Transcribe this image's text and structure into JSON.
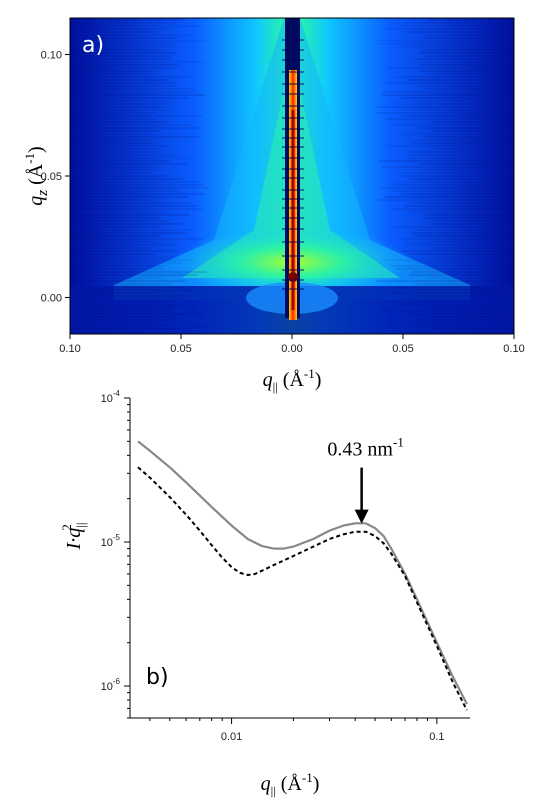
{
  "chart_data": [
    {
      "type": "heatmap",
      "panel_label": "a)",
      "xlabel": "q",
      "xlabel_sub": "||",
      "xlabel_unit": " (Å",
      "xlabel_unit_sup": "-1",
      "xlabel_unit_close": ")",
      "ylabel": "q",
      "ylabel_sub": "z",
      "ylabel_unit": " (Å",
      "ylabel_unit_sup": "-1",
      "ylabel_unit_close": ")",
      "xlim": [
        -0.1,
        0.1
      ],
      "ylim": [
        -0.015,
        0.115
      ],
      "x_ticks": [
        {
          "value": -0.1,
          "label": "0.10"
        },
        {
          "value": -0.05,
          "label": "0.05"
        },
        {
          "value": 0.0,
          "label": "0.00"
        },
        {
          "value": 0.05,
          "label": "0.05"
        },
        {
          "value": 0.1,
          "label": "0.10"
        }
      ],
      "y_ticks": [
        {
          "value": 0.0,
          "label": "0.00"
        },
        {
          "value": 0.05,
          "label": "0.05"
        },
        {
          "value": 0.1,
          "label": "0.10"
        }
      ],
      "colormap": [
        "#00008b",
        "#0050ff",
        "#00c8ff",
        "#40ff90",
        "#c8ff00",
        "#ffd000",
        "#ff3000",
        "#800000"
      ]
    },
    {
      "type": "line",
      "panel_label": "b)",
      "xscale": "log",
      "yscale": "log",
      "xlabel": "q",
      "xlabel_sub": "||",
      "xlabel_unit": " (Å",
      "xlabel_unit_sup": "-1",
      "xlabel_unit_close": ")",
      "ylabel": "I·q",
      "ylabel_sub": "||",
      "ylabel_sup": "2",
      "xlim": [
        0.0032,
        0.145
      ],
      "ylim": [
        6e-07,
        0.0001
      ],
      "x_ticks": [
        {
          "value": 0.01,
          "label": "0.01"
        },
        {
          "value": 0.1,
          "label": "0.1"
        }
      ],
      "y_ticks": [
        {
          "value": 1e-06,
          "base": "10",
          "exp": "-6"
        },
        {
          "value": 1e-05,
          "base": "10",
          "exp": "-5"
        },
        {
          "value": 0.0001,
          "base": "10",
          "exp": "-4"
        }
      ],
      "annotation": {
        "text": "0.43 nm",
        "sup": "-1",
        "x": 0.043,
        "y": 1.3e-05
      },
      "series": [
        {
          "style": "solid",
          "color": "#888888",
          "x": [
            0.0035,
            0.004,
            0.005,
            0.006,
            0.007,
            0.008,
            0.01,
            0.012,
            0.014,
            0.016,
            0.018,
            0.02,
            0.025,
            0.03,
            0.035,
            0.04,
            0.045,
            0.05,
            0.055,
            0.06,
            0.07,
            0.08,
            0.1,
            0.12,
            0.14
          ],
          "y": [
            5e-05,
            4.3e-05,
            3.3e-05,
            2.6e-05,
            2.1e-05,
            1.75e-05,
            1.3e-05,
            1.05e-05,
            9.4e-06,
            9e-06,
            9e-06,
            9.3e-06,
            1.05e-05,
            1.2e-05,
            1.3e-05,
            1.35e-05,
            1.35e-05,
            1.25e-05,
            1.1e-05,
            9e-06,
            6e-06,
            4e-06,
            2e-06,
            1.15e-06,
            7.5e-07
          ]
        },
        {
          "style": "dashed",
          "color": "#000000",
          "x": [
            0.0035,
            0.004,
            0.005,
            0.006,
            0.007,
            0.008,
            0.009,
            0.01,
            0.011,
            0.012,
            0.013,
            0.014,
            0.016,
            0.02,
            0.025,
            0.03,
            0.035,
            0.04,
            0.045,
            0.05,
            0.055,
            0.06,
            0.07,
            0.08,
            0.1,
            0.12,
            0.14
          ],
          "y": [
            3.3e-05,
            2.8e-05,
            2.05e-05,
            1.55e-05,
            1.2e-05,
            9.5e-06,
            7.8e-06,
            6.7e-06,
            6.1e-06,
            5.9e-06,
            6e-06,
            6.3e-06,
            6.9e-06,
            8e-06,
            9.3e-06,
            1.05e-05,
            1.13e-05,
            1.18e-05,
            1.18e-05,
            1.1e-05,
            9.8e-06,
            8.3e-06,
            5.8e-06,
            3.8e-06,
            1.9e-06,
            1.05e-06,
            6.8e-07
          ]
        }
      ]
    }
  ]
}
